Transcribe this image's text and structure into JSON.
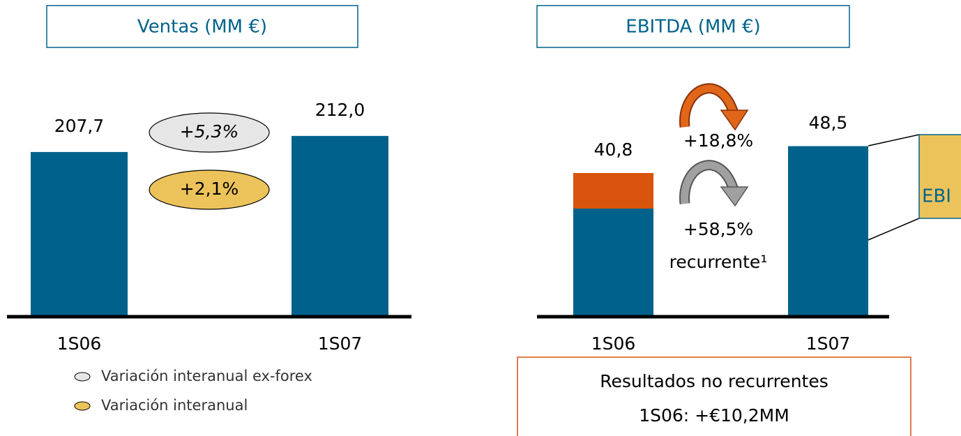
{
  "chart_data": [
    {
      "type": "bar",
      "title": "Ventas (MM €)",
      "categories": [
        "1S06",
        "1S07"
      ],
      "values": [
        207.7,
        212.0
      ],
      "value_labels": [
        "207,7",
        "212,0"
      ],
      "color": "#00628b",
      "ylim": [
        164,
        220
      ],
      "badges": [
        {
          "label": "+5,3%",
          "color": "#e6e6e6"
        },
        {
          "label": "+2,1%",
          "color": "#ecc35a"
        }
      ],
      "legend": [
        {
          "label": "Variación interanual ex-forex",
          "color": "#e6e6e6"
        },
        {
          "label": "Variación interanual",
          "color": "#ecc35a"
        }
      ]
    },
    {
      "type": "stacked_bar",
      "title": "EBITDA (MM €)",
      "categories": [
        "1S06",
        "1S07"
      ],
      "series": [
        {
          "color": "#00628b",
          "values": [
            30.6,
            48.5
          ]
        },
        {
          "color": "#d9540c",
          "values": [
            10.2,
            null
          ]
        }
      ],
      "totals": [
        40.8,
        48.5
      ],
      "total_labels": [
        "40,8",
        "48,5"
      ],
      "ylim": [
        0,
        60
      ],
      "annotations": {
        "change": "+18,8%",
        "recurring_change": "+58,5%",
        "recurring_label": "recurrente¹"
      },
      "note": {
        "title": "Resultados no recurrentes",
        "text": "1S06: +€10,2MM"
      },
      "callout": "EBI"
    }
  ]
}
